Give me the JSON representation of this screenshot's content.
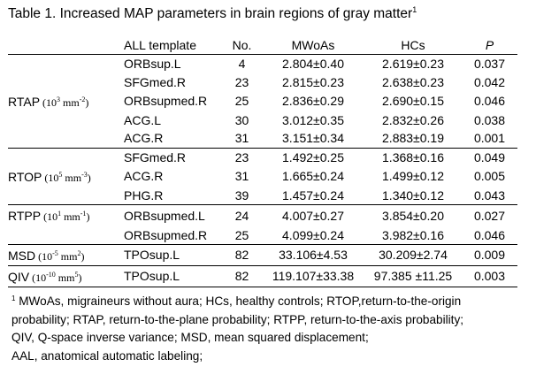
{
  "title": {
    "text": "Table 1. Increased MAP parameters in brain regions of gray matter",
    "sup": "1"
  },
  "headers": [
    "",
    "ALL template",
    "No.",
    "MWoAs",
    "HCs",
    "P"
  ],
  "groups": [
    {
      "name": "RTAP",
      "unit": "(10",
      "unit_exp": "3",
      "unit_rest": " mm",
      "unit_exp2": "-2",
      "unit_end": ")",
      "rows": [
        [
          "ORBsup.L",
          "4",
          "2.804±0.40",
          "2.619±0.23",
          "0.037"
        ],
        [
          "SFGmed.R",
          "23",
          "2.815±0.23",
          "2.638±0.23",
          "0.042"
        ],
        [
          "ORBsupmed.R",
          "25",
          "2.836±0.29",
          "2.690±0.15",
          "0.046"
        ],
        [
          "ACG.L",
          "30",
          "3.012±0.35",
          "2.832±0.26",
          "0.038"
        ],
        [
          "ACG.R",
          "31",
          "3.151±0.34",
          "2.883±0.19",
          "0.001"
        ]
      ]
    },
    {
      "name": "RTOP",
      "unit": "(10",
      "unit_exp": "5",
      "unit_rest": " mm",
      "unit_exp2": "-3",
      "unit_end": ")",
      "rows": [
        [
          "SFGmed.R",
          "23",
          "1.492±0.25",
          "1.368±0.16",
          "0.049"
        ],
        [
          "ACG.R",
          "31",
          "1.665±0.24",
          "1.499±0.12",
          "0.005"
        ],
        [
          "PHG.R",
          "39",
          "1.457±0.24",
          "1.340±0.12",
          "0.043"
        ]
      ]
    },
    {
      "name": "RTPP",
      "unit": "(10",
      "unit_exp": "1",
      "unit_rest": " mm",
      "unit_exp2": "-1",
      "unit_end": ")",
      "rows": [
        [
          "ORBsupmed.L",
          "24",
          "4.007±0.27",
          "3.854±0.20",
          "0.027"
        ],
        [
          "ORBsupmed.R",
          "25",
          "4.099±0.24",
          "3.982±0.16",
          "0.046"
        ]
      ]
    },
    {
      "name": "MSD",
      "unit": "(10",
      "unit_exp": "-5",
      "unit_rest": " mm",
      "unit_exp2": "2",
      "unit_end": ")",
      "rows": [
        [
          "TPOsup.L",
          "82",
          "33.106±4.53",
          "30.209±2.74",
          "0.009"
        ]
      ]
    },
    {
      "name": "QIV",
      "unit": "(10",
      "unit_exp": "-10",
      "unit_rest": " mm",
      "unit_exp2": "5",
      "unit_end": ")",
      "rows": [
        [
          "TPOsup.L",
          "82",
          "119.107±33.38",
          "97.385 ±11.25",
          "0.003"
        ]
      ]
    }
  ],
  "footnote": {
    "sup": "1",
    "lines": [
      " MWoAs, migraineurs without aura; HCs, healthy controls; RTOP,return-to-the-origin",
      "probability; RTAP, return-to-the-plane probability; RTPP, return-to-the-axis probability;",
      "QIV, Q-space inverse variance; MSD, mean squared displacement;",
      "AAL, anatomical automatic labeling;"
    ]
  }
}
